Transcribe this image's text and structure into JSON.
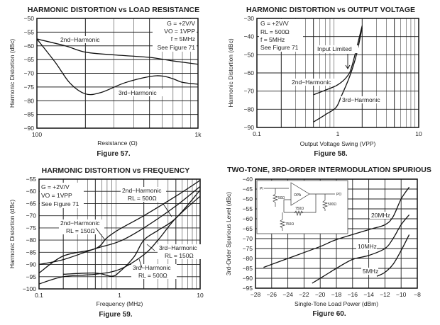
{
  "chart_data": [
    {
      "type": "line",
      "title": "HARMONIC DISTORTION vs LOAD RESISTANCE",
      "caption": "Figure 57.",
      "xlabel": "Resistance (Ω)",
      "ylabel": "Harmonic Distortion (dBc)",
      "xscale": "log",
      "xlim": [
        100,
        1000
      ],
      "ylim": [
        -90,
        -50
      ],
      "xticks": [
        100,
        1000
      ],
      "xtick_labels": [
        "100",
        "1k"
      ],
      "yticks": [
        -50,
        -55,
        -60,
        -65,
        -70,
        -75,
        -80,
        -85,
        -90
      ],
      "grid": true,
      "conditions": [
        "G = +2V/V",
        "VO = 1VPP",
        "f = 5MHz",
        "See Figure 71"
      ],
      "series": [
        {
          "name": "2nd−Harmonic",
          "x": [
            100,
            150,
            200,
            300,
            500,
            700,
            1000
          ],
          "y": [
            -57.5,
            -60,
            -62.3,
            -63.3,
            -64.2,
            -65.5,
            -66.7
          ]
        },
        {
          "name": "3rd−Harmonic",
          "x": [
            100,
            130,
            160,
            200,
            250,
            350,
            500,
            600,
            700,
            800,
            1000
          ],
          "y": [
            -57.5,
            -66,
            -73.5,
            -77.5,
            -77,
            -73.5,
            -71.2,
            -71,
            -72,
            -73.3,
            -74
          ]
        }
      ]
    },
    {
      "type": "line",
      "title": "HARMONIC DISTORTION vs OUTPUT VOLTAGE",
      "caption": "Figure 58.",
      "xlabel": "Output Voltage Swing (VPP)",
      "ylabel": "Harmonic Distortion (dBc)",
      "xscale": "log",
      "xlim": [
        0.1,
        10
      ],
      "ylim": [
        -90,
        -30
      ],
      "xticks": [
        0.1,
        1,
        10
      ],
      "xtick_labels": [
        "0.1",
        "1",
        "10"
      ],
      "yticks": [
        -30,
        -40,
        -50,
        -60,
        -70,
        -80,
        -90
      ],
      "grid": true,
      "conditions": [
        "G = +2V/V",
        "RL = 500Ω",
        "f = 5MHz",
        "See Figure 71"
      ],
      "annotations": [
        "Input Limited"
      ],
      "series": [
        {
          "name": "2nd−Harmonic",
          "x": [
            0.5,
            0.7,
            1,
            1.3,
            1.5,
            2
          ],
          "y": [
            -72,
            -69.5,
            -66.5,
            -62,
            -56,
            -34
          ]
        },
        {
          "name": "3rd−Harmonic",
          "x": [
            0.5,
            0.7,
            0.95,
            1.1,
            1.4,
            1.7,
            2
          ],
          "y": [
            -87,
            -83,
            -79,
            -73,
            -62,
            -50,
            -35
          ]
        }
      ]
    },
    {
      "type": "line",
      "title": "HARMONIC DISTORTION vs FREQUENCY",
      "caption": "Figure 59.",
      "xlabel": "Frequency (MHz)",
      "ylabel": "Harmonic Distortion (dBc)",
      "xscale": "log",
      "xlim": [
        0.1,
        10
      ],
      "ylim": [
        -100,
        -55
      ],
      "xticks": [
        0.1,
        1,
        10
      ],
      "xtick_labels": [
        "0.1",
        "1",
        "10"
      ],
      "yticks": [
        -55,
        -60,
        -65,
        -70,
        -75,
        -80,
        -85,
        -90,
        -95,
        -100
      ],
      "grid": true,
      "conditions": [
        "G = +2V/V",
        "VO = 1VPP",
        "See Figure 71"
      ],
      "series": [
        {
          "name": "2nd−Harmonic",
          "sub": "RL = 500Ω",
          "x": [
            0.1,
            0.2,
            0.5,
            1,
            2,
            5,
            10
          ],
          "y": [
            -90,
            -88,
            -83.5,
            -80.5,
            -75,
            -66,
            -58
          ]
        },
        {
          "name": "2nd−Harmonic",
          "sub": "RL = 150Ω",
          "x": [
            0.1,
            0.2,
            0.5,
            0.7,
            1,
            2,
            5,
            10
          ],
          "y": [
            -93.5,
            -86.5,
            -83.5,
            -79,
            -75.5,
            -70,
            -62,
            -55.5
          ]
        },
        {
          "name": "3rd−Harmonic",
          "sub": "RL = 150Ω",
          "x": [
            0.2,
            0.5,
            0.8,
            1,
            1.5,
            2,
            3,
            5,
            10
          ],
          "y": [
            -94,
            -93.5,
            -94.8,
            -93,
            -87,
            -80,
            -76,
            -71,
            -59.5
          ]
        },
        {
          "name": "3rd−Harmonic",
          "sub": "RL = 500Ω",
          "x": [
            0.1,
            0.2,
            0.5,
            1,
            2,
            3,
            5,
            10
          ],
          "y": [
            -98,
            -95,
            -94,
            -92,
            -86,
            -80,
            -71,
            -62
          ]
        }
      ]
    },
    {
      "type": "line",
      "title": "TWO-TONE, 3RD-ORDER INTERMODULATION SPURIOUS",
      "caption": "Figure 60.",
      "xlabel": "Single-Tone Load Power (dBm)",
      "ylabel": "3rd-Order Spurious Level (dBc)",
      "xscale": "linear",
      "xlim": [
        -28,
        -8
      ],
      "ylim": [
        -95,
        -40
      ],
      "xticks": [
        -28,
        -26,
        -24,
        -22,
        -20,
        -18,
        -16,
        -14,
        -12,
        -10,
        -8
      ],
      "xtick_labels": [
        "−28",
        "−26",
        "−24",
        "−22",
        "−20",
        "−18",
        "−16",
        "−14",
        "−12",
        "−10",
        "−8"
      ],
      "yticks": [
        -40,
        -45,
        -50,
        -55,
        -60,
        -65,
        -70,
        -75,
        -80,
        -85,
        -90,
        -95
      ],
      "grid": true,
      "inset_labels": [
        "PI",
        "50Ω",
        "OPA",
        "750Ω",
        "750Ω",
        "500Ω",
        "PO"
      ],
      "series": [
        {
          "name": "20MHz",
          "x": [
            -27,
            -24,
            -20,
            -18,
            -14,
            -12,
            -11,
            -10,
            -9
          ],
          "y": [
            -84.5,
            -80,
            -74,
            -70.5,
            -65.5,
            -63,
            -59,
            -50,
            -44
          ]
        },
        {
          "name": "10MHz",
          "x": [
            -21,
            -19,
            -18,
            -16,
            -14,
            -12,
            -11,
            -10,
            -9
          ],
          "y": [
            -92.5,
            -87.5,
            -85,
            -80.5,
            -78.5,
            -75,
            -70,
            -63,
            -58
          ]
        },
        {
          "name": "5MHz",
          "x": [
            -13,
            -12,
            -11,
            -10,
            -9
          ],
          "y": [
            -89,
            -87,
            -83,
            -76,
            -68
          ]
        }
      ]
    }
  ]
}
